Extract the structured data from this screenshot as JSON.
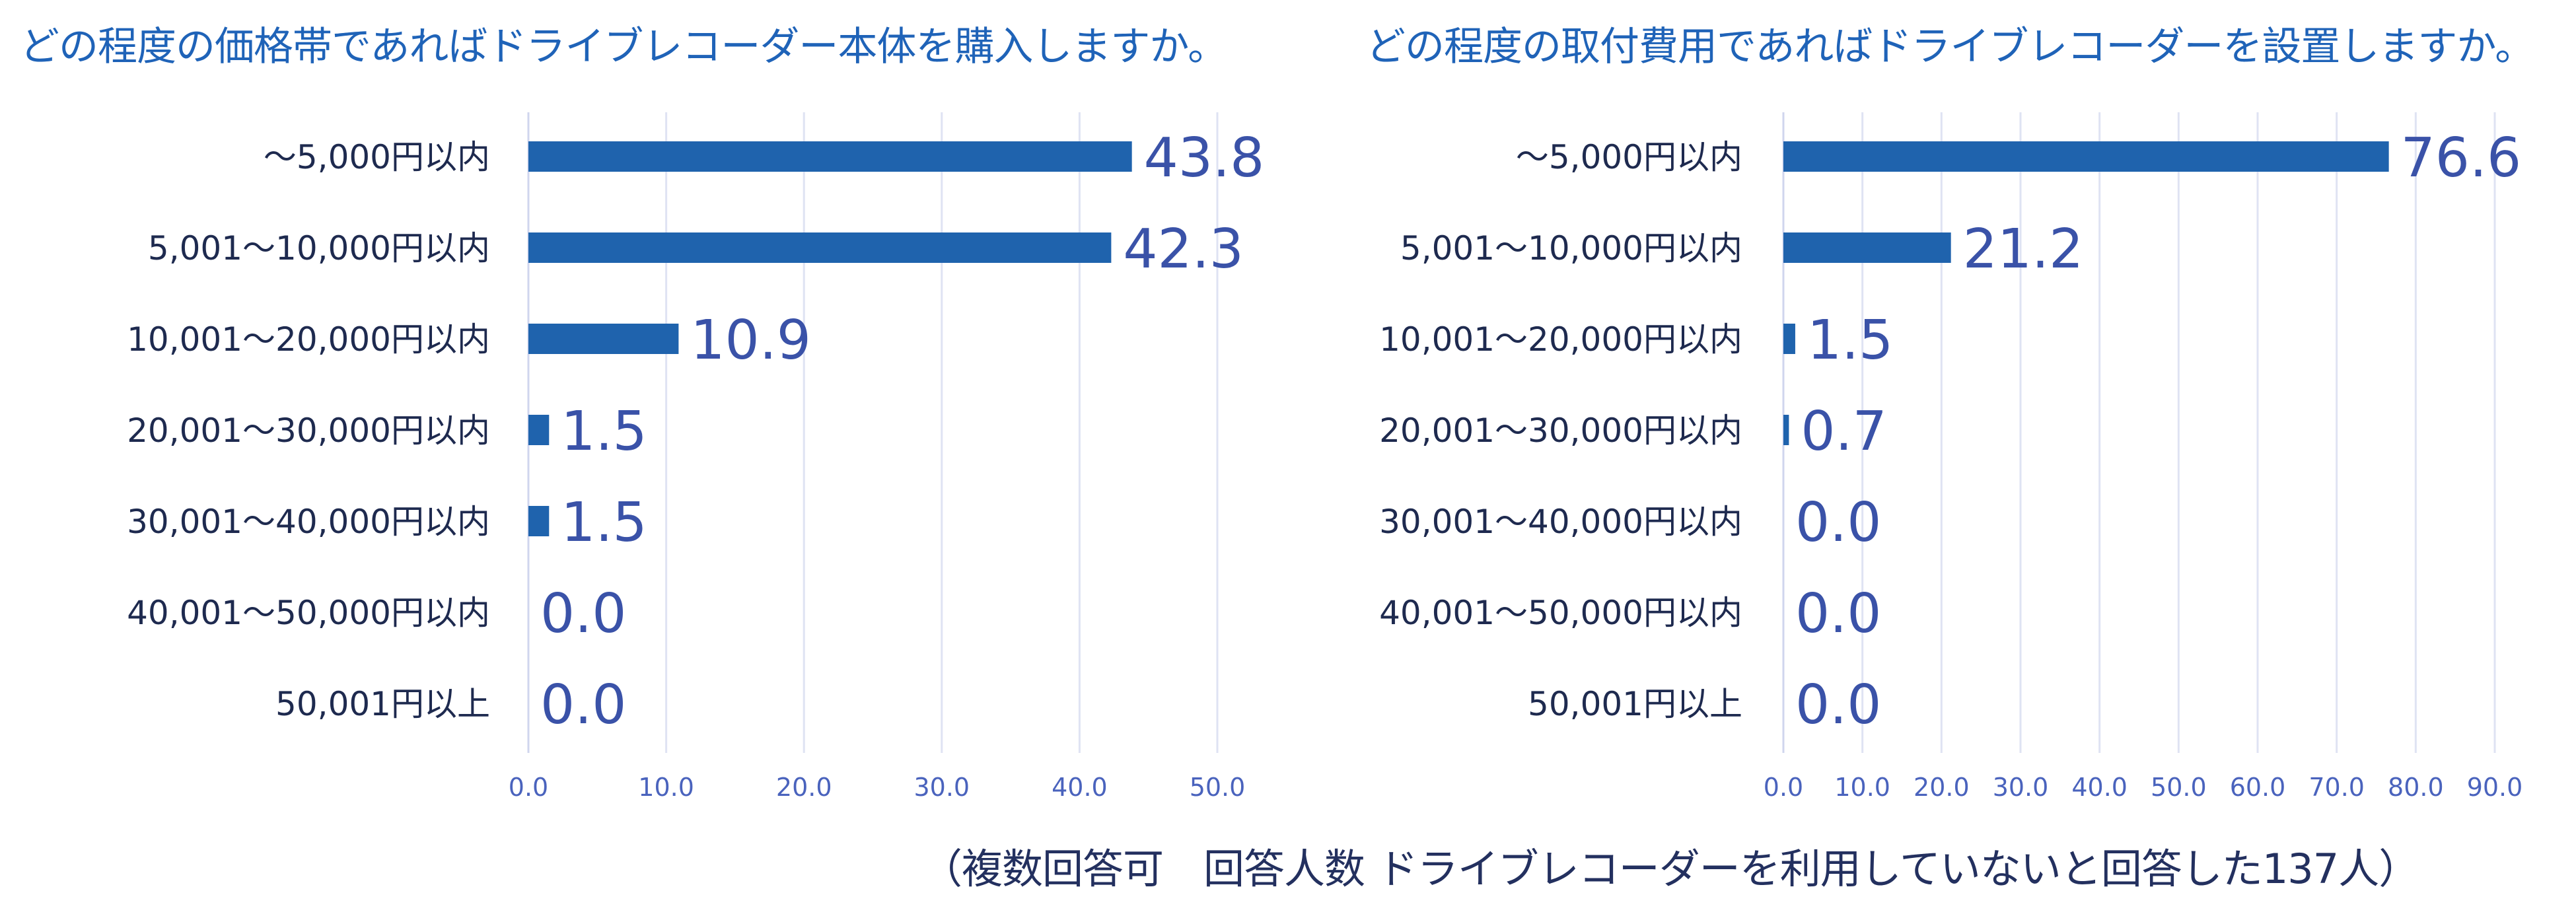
{
  "footnote": "（複数回答可　回答人数 ドライブレコーダーを利用していないと回答した137人）",
  "colors": {
    "bar": "#1f63ad",
    "title": "#1f63b8",
    "value_label": "#3a52a8"
  },
  "chart_data": [
    {
      "type": "bar",
      "orientation": "horizontal",
      "title": "どの程度の価格帯であればドライブレコーダー本体を購入しますか。",
      "categories": [
        "～5,000円以内",
        "5,001～10,000円以内",
        "10,001～20,000円以内",
        "20,001～30,000円以内",
        "30,001～40,000円以内",
        "40,001～50,000円以内",
        "50,001円以上"
      ],
      "values": [
        43.8,
        42.3,
        10.9,
        1.5,
        1.5,
        0.0,
        0.0
      ],
      "value_labels": [
        "43.8",
        "42.3",
        "10.9",
        "1.5",
        "1.5",
        "0.0",
        "0.0"
      ],
      "xlim": [
        0,
        50
      ],
      "xticks": [
        "0.0",
        "10.0",
        "20.0",
        "30.0",
        "40.0",
        "50.0"
      ],
      "grid": true,
      "legend": "none"
    },
    {
      "type": "bar",
      "orientation": "horizontal",
      "title": "どの程度の取付費用であればドライブレコーダーを設置しますか。",
      "categories": [
        "～5,000円以内",
        "5,001～10,000円以内",
        "10,001～20,000円以内",
        "20,001～30,000円以内",
        "30,001～40,000円以内",
        "40,001～50,000円以内",
        "50,001円以上"
      ],
      "values": [
        76.6,
        21.2,
        1.5,
        0.7,
        0.0,
        0.0,
        0.0
      ],
      "value_labels": [
        "76.6",
        "21.2",
        "1.5",
        "0.7",
        "0.0",
        "0.0",
        "0.0"
      ],
      "xlim": [
        0,
        90
      ],
      "xticks": [
        "0.0",
        "10.0",
        "20.0",
        "30.0",
        "40.0",
        "50.0",
        "60.0",
        "70.0",
        "80.0",
        "90.0"
      ],
      "grid": true,
      "legend": "none"
    }
  ]
}
